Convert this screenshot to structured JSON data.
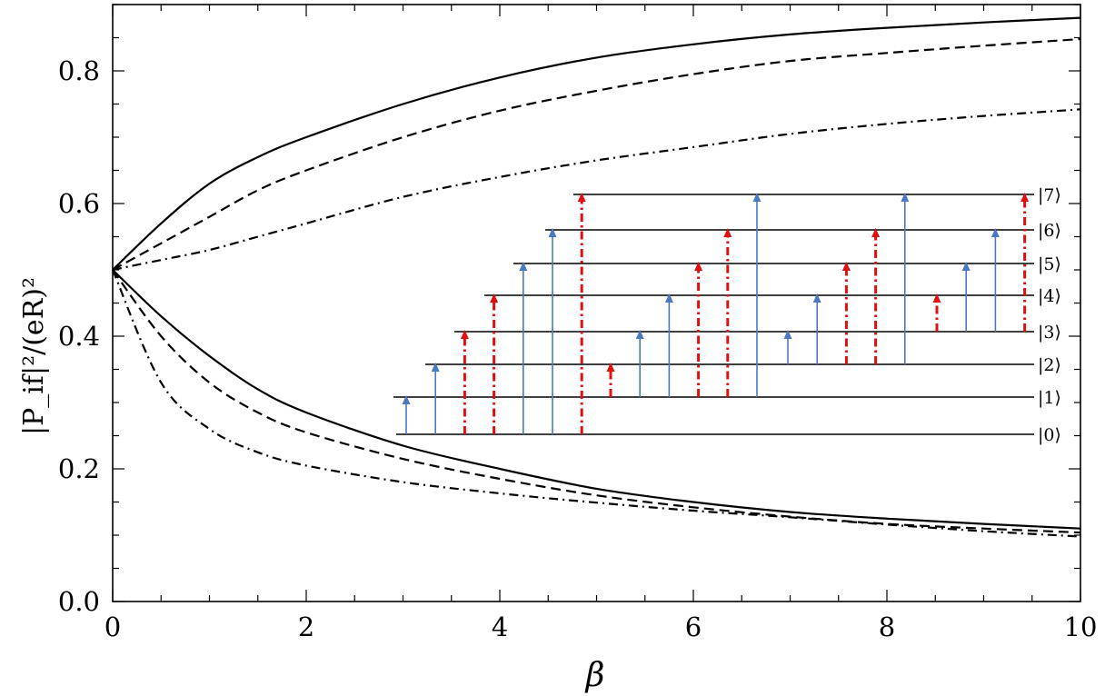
{
  "chart_data": {
    "type": "line",
    "xlabel": "β",
    "ylabel": "|P_if|²/(eR)²",
    "xlim": [
      0,
      10
    ],
    "ylim": [
      0,
      0.9
    ],
    "x_ticks": [
      "0",
      "2",
      "4",
      "6",
      "8",
      "10"
    ],
    "y_ticks": [
      "0.0",
      "0.2",
      "0.4",
      "0.6",
      "0.8"
    ],
    "grid": false,
    "x": [
      0,
      0.5,
      1,
      1.5,
      2,
      3,
      4,
      5,
      6,
      7,
      8,
      9,
      10
    ],
    "series": [
      {
        "style": "solid",
        "branch": "upper",
        "values": [
          0.5,
          0.57,
          0.63,
          0.67,
          0.7,
          0.75,
          0.79,
          0.82,
          0.84,
          0.855,
          0.865,
          0.873,
          0.88
        ]
      },
      {
        "style": "dashed",
        "branch": "upper",
        "values": [
          0.5,
          0.54,
          0.58,
          0.62,
          0.65,
          0.7,
          0.74,
          0.77,
          0.795,
          0.815,
          0.827,
          0.838,
          0.848
        ]
      },
      {
        "style": "dash-dot",
        "branch": "upper",
        "values": [
          0.5,
          0.515,
          0.53,
          0.55,
          0.57,
          0.61,
          0.64,
          0.665,
          0.685,
          0.705,
          0.72,
          0.732,
          0.742
        ]
      },
      {
        "style": "solid",
        "branch": "lower",
        "values": [
          0.5,
          0.43,
          0.37,
          0.32,
          0.285,
          0.235,
          0.2,
          0.17,
          0.15,
          0.135,
          0.125,
          0.117,
          0.11
        ]
      },
      {
        "style": "dashed",
        "branch": "lower",
        "values": [
          0.5,
          0.4,
          0.33,
          0.285,
          0.255,
          0.215,
          0.185,
          0.16,
          0.142,
          0.128,
          0.117,
          0.11,
          0.104
        ]
      },
      {
        "style": "dash-dot",
        "branch": "lower",
        "values": [
          0.5,
          0.33,
          0.26,
          0.225,
          0.205,
          0.18,
          0.163,
          0.149,
          0.137,
          0.127,
          0.116,
          0.106,
          0.098
        ]
      }
    ],
    "inset": {
      "levels": [
        "|0⟩",
        "|1⟩",
        "|2⟩",
        "|3⟩",
        "|4⟩",
        "|5⟩",
        "|6⟩",
        "|7⟩"
      ],
      "transitions": [
        {
          "from": 0,
          "to": 1,
          "kind": "blue-solid"
        },
        {
          "from": 0,
          "to": 2,
          "kind": "blue-solid"
        },
        {
          "from": 0,
          "to": 3,
          "kind": "red-dashdot"
        },
        {
          "from": 0,
          "to": 4,
          "kind": "red-dashdot"
        },
        {
          "from": 0,
          "to": 5,
          "kind": "blue-solid"
        },
        {
          "from": 0,
          "to": 6,
          "kind": "blue-solid"
        },
        {
          "from": 0,
          "to": 7,
          "kind": "red-dashdot"
        },
        {
          "from": 1,
          "to": 2,
          "kind": "red-dashdot"
        },
        {
          "from": 1,
          "to": 3,
          "kind": "blue-solid"
        },
        {
          "from": 1,
          "to": 4,
          "kind": "blue-solid"
        },
        {
          "from": 1,
          "to": 5,
          "kind": "red-dashdot"
        },
        {
          "from": 1,
          "to": 6,
          "kind": "red-dashdot"
        },
        {
          "from": 1,
          "to": 7,
          "kind": "blue-solid"
        },
        {
          "from": 2,
          "to": 3,
          "kind": "blue-solid"
        },
        {
          "from": 2,
          "to": 4,
          "kind": "blue-solid"
        },
        {
          "from": 2,
          "to": 5,
          "kind": "red-dashdot"
        },
        {
          "from": 2,
          "to": 6,
          "kind": "red-dashdot"
        },
        {
          "from": 2,
          "to": 7,
          "kind": "blue-solid"
        },
        {
          "from": 3,
          "to": 4,
          "kind": "red-dashdot"
        },
        {
          "from": 3,
          "to": 5,
          "kind": "blue-solid"
        },
        {
          "from": 3,
          "to": 6,
          "kind": "blue-solid"
        },
        {
          "from": 3,
          "to": 7,
          "kind": "red-dashdot"
        }
      ]
    }
  },
  "colors": {
    "curve": "#000000",
    "blue_arrow": "#4a78c2",
    "red_arrow": "#e01010",
    "axis": "#000000"
  }
}
